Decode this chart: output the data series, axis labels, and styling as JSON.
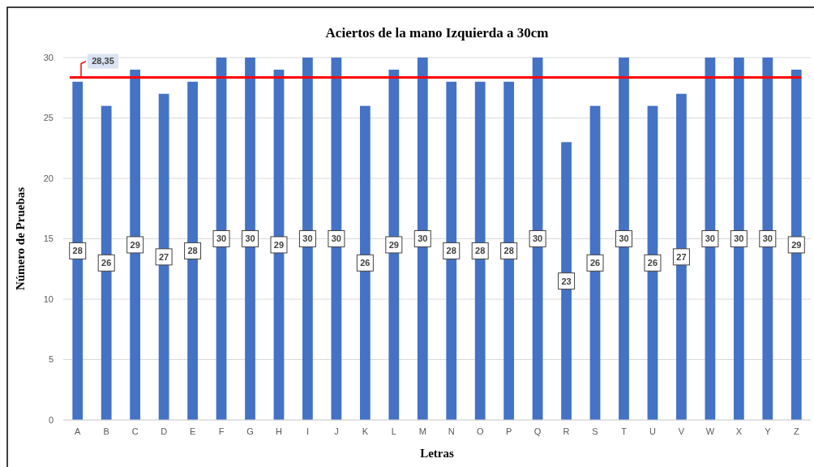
{
  "chart_data": {
    "type": "bar",
    "title": "Aciertos de la mano Izquierda  a 30cm",
    "xlabel": "Letras",
    "ylabel": "Número de Pruebas",
    "categories": [
      "A",
      "B",
      "C",
      "D",
      "E",
      "F",
      "G",
      "H",
      "I",
      "J",
      "K",
      "L",
      "M",
      "N",
      "O",
      "P",
      "Q",
      "R",
      "S",
      "T",
      "U",
      "V",
      "W",
      "X",
      "Y",
      "Z"
    ],
    "values": [
      28,
      26,
      29,
      27,
      28,
      30,
      30,
      29,
      30,
      30,
      26,
      29,
      30,
      28,
      28,
      28,
      30,
      23,
      26,
      30,
      26,
      27,
      30,
      30,
      30,
      29
    ],
    "color": "#4472c4",
    "ylim": [
      0,
      30
    ],
    "yticks": [
      0,
      5,
      10,
      15,
      20,
      25,
      30
    ],
    "grid": "y",
    "data_labels": true,
    "ref_lines": [
      {
        "axis": "y",
        "value": 28.35,
        "label": "28,35",
        "color": "#ff0000"
      }
    ]
  }
}
